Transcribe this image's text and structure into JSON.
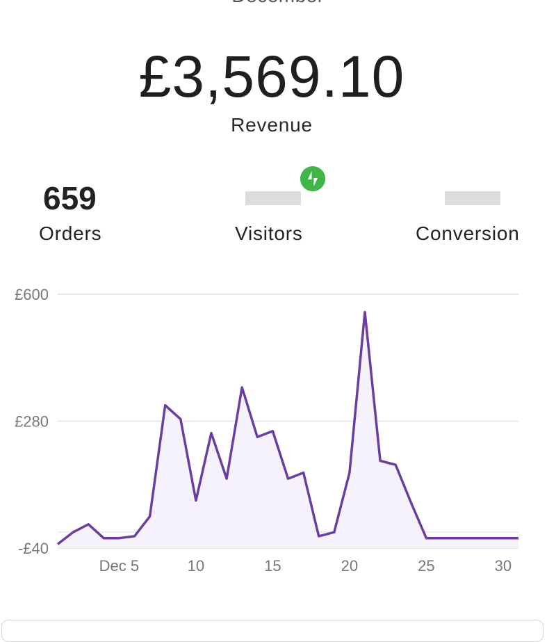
{
  "header": {
    "period": "December",
    "revenue_value": "£3,569.10",
    "revenue_label": "Revenue"
  },
  "stats": {
    "orders": {
      "value": "659",
      "label": "Orders"
    },
    "visitors": {
      "label": "Visitors",
      "badge_icon": "jetpack-bolt-icon",
      "badge_color": "#3fb54a"
    },
    "conversion": {
      "label": "Conversion"
    }
  },
  "colors": {
    "line": "#6a3ea1",
    "fill": "#f6f2fb",
    "grid": "#e3e3e3",
    "axis_text": "#777777"
  },
  "chart_data": {
    "type": "area",
    "xlabel": "",
    "ylabel": "",
    "x": [
      1,
      2,
      3,
      4,
      5,
      6,
      7,
      8,
      9,
      10,
      11,
      12,
      13,
      14,
      15,
      16,
      17,
      18,
      19,
      20,
      21,
      22,
      23,
      24,
      25,
      26,
      27,
      28,
      29,
      30,
      31
    ],
    "values": [
      -30,
      0,
      20,
      -15,
      -15,
      -10,
      40,
      320,
      285,
      80,
      250,
      135,
      365,
      240,
      255,
      135,
      150,
      -10,
      0,
      150,
      555,
      180,
      170,
      75,
      -15,
      -15,
      -15,
      -15,
      -15,
      -15,
      -15
    ],
    "ylim": [
      -40,
      600
    ],
    "y_ticks": [
      {
        "value": 600,
        "label": "£600"
      },
      {
        "value": 280,
        "label": "£280"
      },
      {
        "value": -40,
        "label": "-£40"
      }
    ],
    "x_ticks": [
      {
        "value": 5,
        "label": "Dec 5"
      },
      {
        "value": 10,
        "label": "10"
      },
      {
        "value": 15,
        "label": "15"
      },
      {
        "value": 20,
        "label": "20"
      },
      {
        "value": 25,
        "label": "25"
      },
      {
        "value": 30,
        "label": "30"
      }
    ],
    "grid": true,
    "legend": "none"
  }
}
